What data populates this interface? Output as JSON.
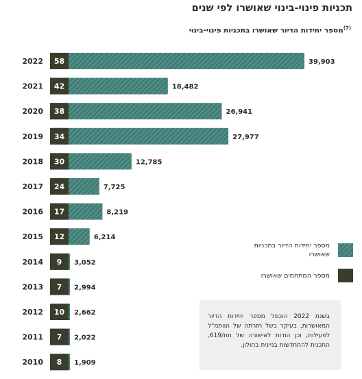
{
  "title": "תכניות פינוי-בינוי שאושרו לפי שנים",
  "subtitle": "מספר יחידות הדיור שאושרו בתכניות פינוי-בינוי",
  "subtitle_note_marker": "(7)",
  "colors": {
    "units_bar": "#4f8f88",
    "units_stripe": "#3e756f",
    "count_box": "#3a3d2b",
    "note_background": "#efefef"
  },
  "legend": {
    "units": "מספר יחידות הדיור בתכניות שאושרו",
    "plans": "מספר המתחמים שאושרו"
  },
  "note": "בשנת 2022 הוכפל מספר יחידות הדיור המאושרות, בעיקר בשל חזרתה של הוותמ\"ל לפעילות, וכן הודות לאישורה של תח/619, התכנית להתחדשות בניינית בחולון.",
  "chart_data": {
    "type": "bar",
    "orientation": "horizontal",
    "categories": [
      "2022",
      "2021",
      "2020",
      "2019",
      "2018",
      "2017",
      "2016",
      "2015",
      "2014",
      "2013",
      "2012",
      "2011",
      "2010"
    ],
    "series": [
      {
        "name": "מספר יחידות הדיור בתכניות שאושרו",
        "values": [
          39903,
          18482,
          26941,
          27977,
          12785,
          7725,
          8219,
          6214,
          3052,
          2994,
          2662,
          2022,
          1909
        ],
        "labels": [
          "39,903",
          "18,482",
          "26,941",
          "27,977",
          "12,785",
          "7,725",
          "8,219",
          "6,214",
          "3,052",
          "2,994",
          "2,662",
          "2,022",
          "1,909"
        ]
      },
      {
        "name": "מספר המתחמים שאושרו",
        "values": [
          58,
          42,
          38,
          34,
          30,
          24,
          17,
          12,
          9,
          7,
          10,
          7,
          8
        ],
        "labels": [
          "58",
          "42",
          "38",
          "34",
          "30",
          "24",
          "17",
          "12",
          "9",
          "7",
          "10",
          "7",
          "8"
        ]
      }
    ],
    "grid": false,
    "legend_position": "bottom-right"
  }
}
